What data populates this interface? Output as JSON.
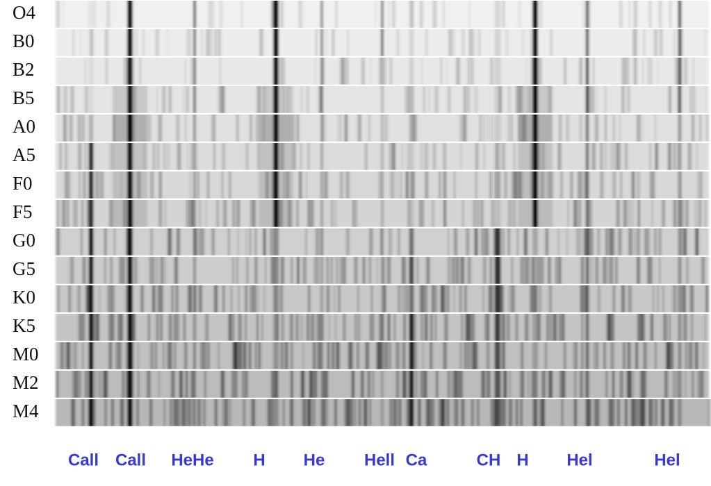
{
  "spectral_types": [
    "O4",
    "B0",
    "B2",
    "B5",
    "A0",
    "A5",
    "F0",
    "F5",
    "G0",
    "G5",
    "K0",
    "K5",
    "M0",
    "M2",
    "M4"
  ],
  "line_labels": [
    "Call",
    "Call",
    "HeHe",
    "H",
    "He",
    "Hell",
    "Ca",
    "CH",
    "H",
    "Hel",
    "Hel"
  ]
}
